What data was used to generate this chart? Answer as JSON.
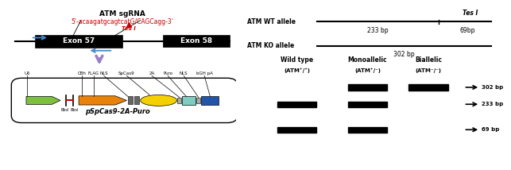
{
  "title": "ATM sgRNA",
  "sgRNA_text_normal": "5'-acaagatgcagtcatG/CAGCagg-3'",
  "TesI_label": "Tes I",
  "exon57_label": "Exon 57",
  "exon58_label": "Exon 58",
  "plasmid_name": "pSpCas9-2A-Puro",
  "plasmid_labels": [
    "U6",
    "CBh",
    "FLAG",
    "NLS",
    "SpCas9",
    "2A",
    "Puro",
    "NLS",
    "bGH pA"
  ],
  "BbsI_labels": [
    "BbsI",
    "BbsI"
  ],
  "wt_allele_label": "ATM WT allele",
  "ko_allele_label": "ATM KO allele",
  "wt_bp1": "233 bp",
  "wt_bp2": "69bp",
  "ko_bp": "302 bp",
  "TesI_right": "Tes I",
  "gel_col1_line1": "Wild type",
  "gel_col1_line2": "(ATM",
  "gel_col1_sup": "+/+",
  "gel_col2_line1": "Monoallelic",
  "gel_col2_line2": "(ATM",
  "gel_col2_sup": "+/-",
  "gel_col3_line1": "Biallelic",
  "gel_col3_line2": "(ATM",
  "gel_col3_sup": "-/-",
  "gel_band_302": "302 bp",
  "gel_band_233": "233 bp",
  "gel_band_69": "69 bp",
  "colors": {
    "background": "#ffffff",
    "exon_black": "#000000",
    "arrow_blue": "#4488cc",
    "arrow_purple": "#9b7fc7",
    "sgRNA_red": "#cc0000",
    "line_color": "#000000",
    "green_arrow": "#7dc040",
    "orange_arrow": "#e8820a",
    "yellow_oval": "#f5d000",
    "teal_box": "#7ecdc0",
    "blue_box": "#2255aa",
    "gray_small": "#888888",
    "red_line": "#cc0000"
  }
}
